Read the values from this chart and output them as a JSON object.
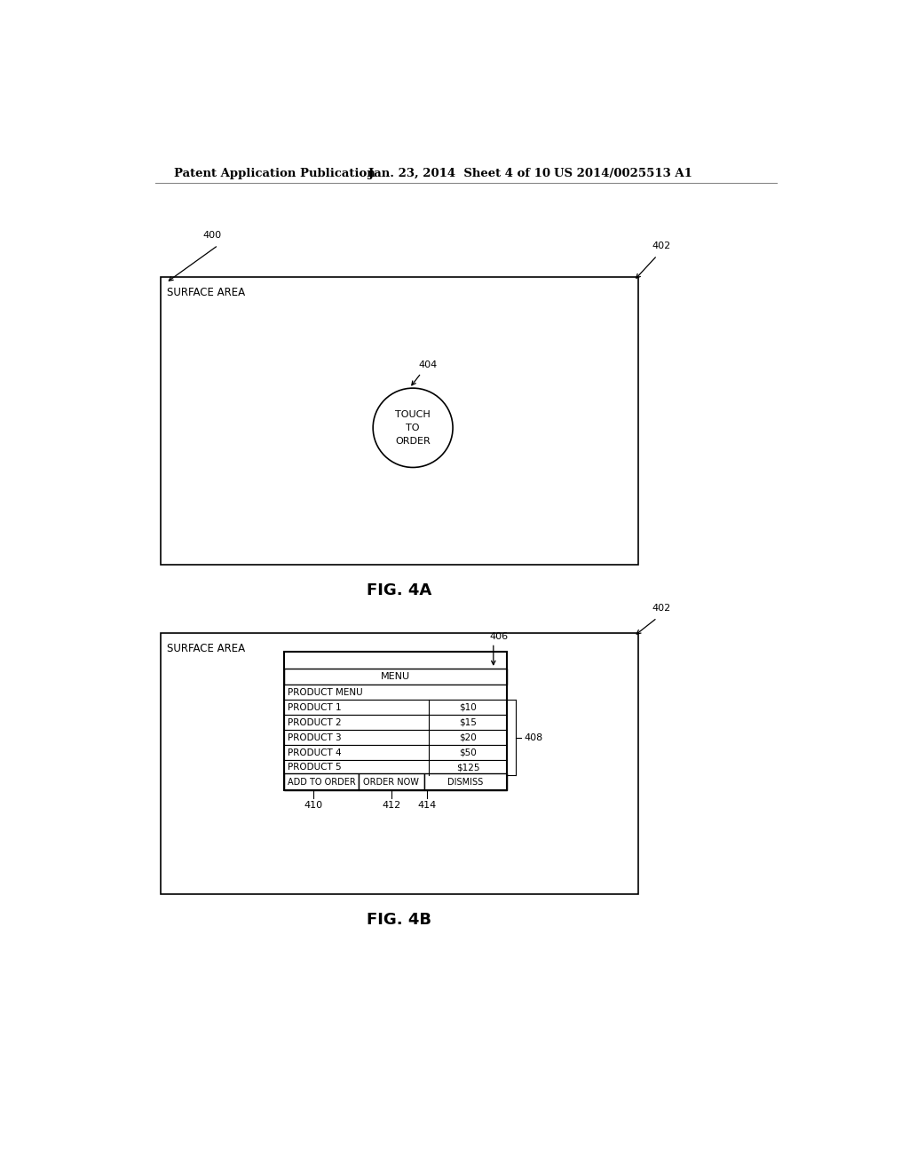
{
  "header_left": "Patent Application Publication",
  "header_mid": "Jan. 23, 2014  Sheet 4 of 10",
  "header_right": "US 2014/0025513 A1",
  "fig4a_label": "FIG. 4A",
  "fig4b_label": "FIG. 4B",
  "surface_area_text": "SURFACE AREA",
  "touch_to_order": "TOUCH\nTO\nORDER",
  "label_400": "400",
  "label_402a": "402",
  "label_404": "404",
  "label_402b": "402",
  "label_406": "406",
  "label_408": "408",
  "label_410": "410",
  "label_412": "412",
  "label_414": "414",
  "menu_title": "MENU",
  "menu_rows": [
    [
      "PRODUCT MENU",
      ""
    ],
    [
      "PRODUCT 1",
      "$10"
    ],
    [
      "PRODUCT 2",
      "$15"
    ],
    [
      "PRODUCT 3",
      "$20"
    ],
    [
      "PRODUCT 4",
      "$50"
    ],
    [
      "PRODUCT 5",
      "$125"
    ]
  ],
  "button_labels": [
    "ADD TO ORDER",
    "ORDER NOW",
    "DISMISS"
  ],
  "bg_color": "#ffffff",
  "text_color": "#000000",
  "fontsize_header": 9.5,
  "fontsize_body": 8,
  "fontsize_fig": 13,
  "fontsize_label": 8,
  "fontsize_surface": 8.5,
  "fontsize_table": 7.5
}
